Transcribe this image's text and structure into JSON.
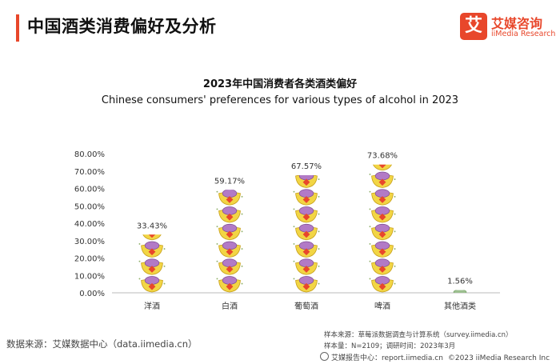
{
  "header": {
    "title": "中国酒类消费偏好及分析",
    "logo_mark": "艾",
    "logo_cn": "艾媒咨询",
    "logo_en": "iiMedia Research"
  },
  "colors": {
    "accent": "#e8472b",
    "ingot_gold": "#f2d544",
    "ingot_purple": "#b27ac6",
    "ingot_red": "#e8472b",
    "ingot_green": "#9cbf8f"
  },
  "chart_data": {
    "type": "bar",
    "title": "2023年中国消费者各类酒类偏好",
    "subtitle": "Chinese consumers' preferences for various types of alcohol in 2023",
    "categories": [
      "洋酒",
      "白酒",
      "葡萄酒",
      "啤酒",
      "其他酒类"
    ],
    "values": [
      33.43,
      59.17,
      67.57,
      73.68,
      1.56
    ],
    "data_labels": [
      "33.43%",
      "59.17%",
      "67.57%",
      "73.68%",
      "1.56%"
    ],
    "ylim": [
      0,
      80
    ],
    "yticks": [
      "0.00%",
      "10.00%",
      "20.00%",
      "30.00%",
      "40.00%",
      "50.00%",
      "60.00%",
      "70.00%",
      "80.00%"
    ],
    "xlabel": "",
    "ylabel": "",
    "grid": false,
    "legend": "none"
  },
  "footer": {
    "source": "数据来源：艾媒数据中心（data.iimedia.cn）",
    "sample_source": "样本来源：草莓派数据调查与计算系统（survey.iimedia.cn）",
    "sample_size": "样本量：N=2109；调研时间：2023年3月",
    "report_center": "艾媒报告中心：report.iimedia.cn",
    "copyright": "©2023  iiMedia Research  Inc"
  }
}
